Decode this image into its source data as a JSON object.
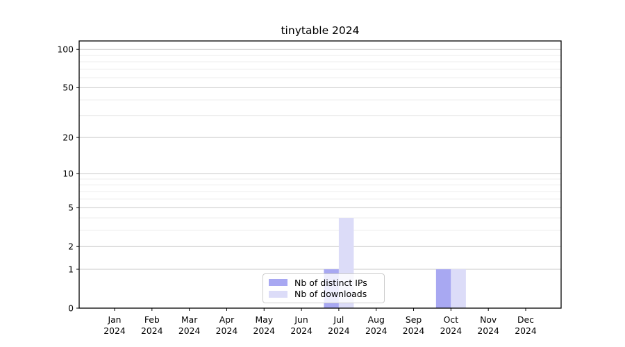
{
  "chart_data": {
    "type": "bar",
    "title": "tinytable 2024",
    "xlabel": "",
    "ylabel": "",
    "yscale": "log1p",
    "ylim": [
      0,
      116.5
    ],
    "yticks_major": [
      0,
      1,
      2,
      5,
      10,
      20,
      50,
      100
    ],
    "yticks_minor": [
      3,
      4,
      6,
      7,
      8,
      9,
      30,
      40,
      60,
      70,
      80,
      90
    ],
    "grid": true,
    "categories": [
      "Jan",
      "Feb",
      "Mar",
      "Apr",
      "May",
      "Jun",
      "Jul",
      "Aug",
      "Sep",
      "Oct",
      "Nov",
      "Dec"
    ],
    "year_label": "2024",
    "series": [
      {
        "name": "Nb of distinct IPs",
        "color": "#a8a8f2",
        "values": [
          0,
          0,
          0,
          0,
          0,
          0,
          1,
          0,
          0,
          1,
          0,
          0
        ]
      },
      {
        "name": "Nb of downloads",
        "color": "#dcdcf8",
        "values": [
          0,
          0,
          0,
          0,
          0,
          0,
          4,
          0,
          0,
          1,
          0,
          0
        ]
      }
    ],
    "legend_position": "lower-center",
    "colors": {
      "grid_major": "#c9c9c9",
      "grid_minor": "#ececec",
      "spine": "#000000",
      "tick_text": "#000000"
    }
  }
}
